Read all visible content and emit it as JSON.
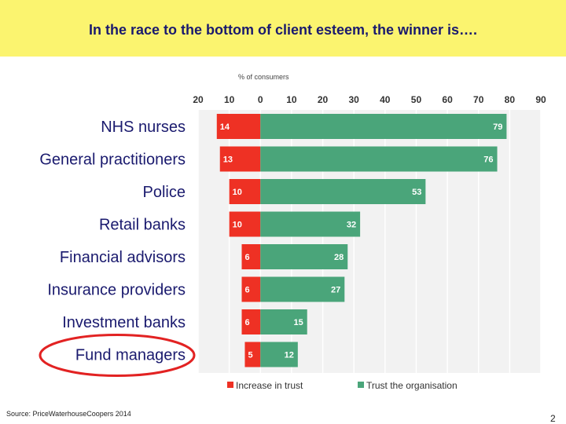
{
  "slide": {
    "title": "In the race to the bottom of client esteem, the winner is….",
    "source": "Source: PriceWaterhouseCoopers 2014",
    "page_number": "2"
  },
  "colors": {
    "banner": "#fbf46f",
    "title": "#1a1a6e",
    "increase": "#ee3124",
    "trust": "#4aa57a",
    "highlight": "#e22222"
  },
  "chart_data": {
    "type": "bar",
    "orientation": "horizontal-diverging",
    "unit_label": "% of consumers",
    "axis_ticks": [
      "20",
      "10",
      "0",
      "10",
      "20",
      "30",
      "40",
      "50",
      "60",
      "70",
      "80",
      "90"
    ],
    "xlim": [
      -20,
      90
    ],
    "grid": true,
    "legend_position": "bottom",
    "categories": [
      "NHS nurses",
      "General practitioners",
      "Police",
      "Retail banks",
      "Financial advisors",
      "Insurance providers",
      "Investment banks",
      "Fund managers"
    ],
    "series": [
      {
        "name": "Increase in trust",
        "values": [
          14,
          13,
          10,
          10,
          6,
          6,
          6,
          5
        ]
      },
      {
        "name": "Trust the organisation",
        "values": [
          79,
          76,
          53,
          32,
          28,
          27,
          15,
          12
        ]
      }
    ],
    "highlighted_category": "Fund managers"
  }
}
